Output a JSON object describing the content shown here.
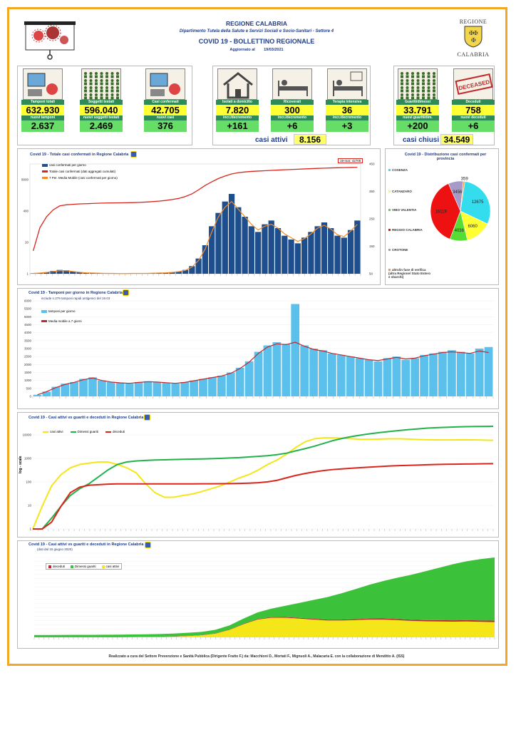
{
  "header": {
    "region": "REGIONE CALABRIA",
    "department": "Dipartimento Tutela della Salute e Servizi Sociali e Socio-Sanitari - Settore 4",
    "title": "COVID 19 - BOLLETTINO REGIONALE",
    "updated_label": "Aggiornato al",
    "updated_date": "19/03/2021",
    "logo_top": "REGIONE",
    "logo_bottom": "CALABRIA"
  },
  "kpis": [
    {
      "label": "Tamponi totali",
      "value": "632.930",
      "sub_label": "nuovi tamponi",
      "sub_value": "2.637",
      "icon": "lab-computer-icon"
    },
    {
      "label": "Soggetti testati",
      "value": "596.040",
      "sub_label": "nuovi soggetti testati",
      "sub_value": "2.469",
      "icon": "people-grid-icon"
    },
    {
      "label": "Casi confermati",
      "value": "42.705",
      "sub_label": "nuovi casi",
      "sub_value": "376",
      "icon": "virus-people-icon"
    },
    {
      "label": "Isolati a domicilio",
      "value": "7.820",
      "sub_label": "incr./decremento",
      "sub_value": "+161",
      "icon": "house-icon"
    },
    {
      "label": "Ricoverati",
      "value": "300",
      "sub_label": "incr./decremento",
      "sub_value": "+6",
      "icon": "hospital-bed-icon"
    },
    {
      "label": "Terapia intensiva",
      "value": "36",
      "sub_label": "incr./decremento",
      "sub_value": "+3",
      "icon": "intensive-care-icon"
    },
    {
      "label": "Guariti/dimessi",
      "value": "33.791",
      "sub_label": "nuovi guariti/dim.",
      "sub_value": "+200",
      "icon": "recovered-people-icon"
    },
    {
      "label": "Deceduti",
      "value": "758",
      "sub_label": "nuovi deceduti",
      "sub_value": "+6",
      "icon": "deceased-stamp-icon"
    }
  ],
  "active": {
    "label": "casi attivi",
    "value": "8.156"
  },
  "closed": {
    "label": "casi chiusi",
    "value": "34.549"
  },
  "deceased_stamp_text": "DECEASED",
  "chart_data": [
    {
      "type": "bar",
      "title": "Covid 19 - Totale casi confermati in Regione Calabria",
      "annotation": "19-mar; 42705",
      "legend": [
        "casi confermati per giorno",
        "Totale casi confermati (dati aggregati cumulati)",
        "7 Per. Media Mobile (casi confermati per giorno)"
      ],
      "y_left_ticks": [
        "8000",
        "400",
        "20",
        "1"
      ],
      "y_right_ticks": [
        "450",
        "350",
        "250",
        "150",
        "50"
      ],
      "scale": "log",
      "series": [
        {
          "name": "casi confermati per giorno",
          "color": "#1f4e8c",
          "values": [
            2,
            4,
            8,
            15,
            20,
            18,
            12,
            8,
            5,
            4,
            3,
            2,
            2,
            1,
            1,
            2,
            3,
            2,
            3,
            4,
            5,
            8,
            12,
            20,
            40,
            80,
            150,
            250,
            320,
            380,
            420,
            350,
            300,
            250,
            220,
            260,
            280,
            240,
            200,
            180,
            160,
            190,
            220,
            250,
            270,
            240,
            200,
            190,
            230,
            280
          ]
        },
        {
          "name": "Totale casi confermati (dati aggregati cumulati)",
          "color": "#d9261c",
          "values": [
            10,
            100,
            300,
            600,
            900,
            1000,
            1050,
            1100,
            1120,
            1150,
            1180,
            1200,
            1210,
            1220,
            1230,
            1250,
            1280,
            1320,
            1380,
            1450,
            1550,
            1700,
            1900,
            2300,
            3000,
            4500,
            7000,
            10000,
            14000,
            18000,
            22000,
            25000,
            27000,
            28500,
            29500,
            30500,
            31500,
            32500,
            33500,
            34500,
            35500,
            36500,
            37500,
            38500,
            39500,
            40300,
            41000,
            41600,
            42200,
            42705
          ]
        },
        {
          "name": "7 Per. Media Mobile (casi confermati per giorno)",
          "color": "#f28c28",
          "values": [
            2,
            4,
            7,
            12,
            16,
            16,
            12,
            8,
            5,
            4,
            3,
            2,
            2,
            1,
            1,
            2,
            2,
            2,
            3,
            4,
            5,
            7,
            11,
            18,
            35,
            70,
            130,
            220,
            300,
            350,
            380,
            340,
            300,
            260,
            230,
            250,
            260,
            240,
            210,
            190,
            170,
            185,
            210,
            240,
            255,
            235,
            205,
            195,
            225,
            260
          ]
        }
      ]
    },
    {
      "type": "pie",
      "title": "Covid 19 - Distribuzione casi confermati per provincia",
      "categories": [
        "COSENZA",
        "CATANZARO",
        "VIBO VALENTIA",
        "REGGIO CALABRIA",
        "CROTONE",
        "altro/in fase di verifica (altra Regione/ Stato Estero e sbarchi)"
      ],
      "values": [
        12675,
        6060,
        4036,
        16119,
        3456,
        359
      ],
      "colors": [
        "#33ddee",
        "#ffff33",
        "#55dd33",
        "#ee1111",
        "#a69ac8",
        "#ff9933"
      ]
    },
    {
      "type": "bar",
      "title": "Covid 19 - Tamponi per giorno in Regione Calabria",
      "subtitle": "include n.279 tamponi rapidi antigenici del 19.03",
      "legend": [
        "tamponi per giorno",
        "Media mobile a 7 giorni"
      ],
      "y_ticks": [
        "6000",
        "5500",
        "5000",
        "4500",
        "4000",
        "3500",
        "3000",
        "2500",
        "2000",
        "1500",
        "1000",
        "500",
        "0"
      ],
      "ylim": [
        0,
        6000
      ],
      "series": [
        {
          "name": "tamponi per giorno",
          "color": "#5bc0eb",
          "values": [
            100,
            300,
            600,
            800,
            900,
            1100,
            1200,
            1000,
            900,
            850,
            800,
            900,
            950,
            900,
            850,
            800,
            900,
            1000,
            1100,
            1200,
            1300,
            1500,
            1800,
            2200,
            2800,
            3200,
            3400,
            3300,
            5800,
            3200,
            3000,
            2900,
            2700,
            2600,
            2500,
            2400,
            2300,
            2200,
            2400,
            2500,
            2300,
            2400,
            2600,
            2700,
            2800,
            2900,
            2800,
            2700,
            3000,
            3100
          ]
        },
        {
          "name": "Media mobile a 7 giorni",
          "color": "#c0282d",
          "values": [
            100,
            300,
            550,
            750,
            880,
            1050,
            1150,
            1000,
            900,
            850,
            820,
            880,
            920,
            900,
            860,
            820,
            880,
            980,
            1080,
            1180,
            1280,
            1450,
            1750,
            2150,
            2700,
            3100,
            3300,
            3250,
            3400,
            3150,
            2950,
            2850,
            2700,
            2600,
            2500,
            2400,
            2300,
            2250,
            2350,
            2450,
            2350,
            2400,
            2550,
            2650,
            2750,
            2800,
            2750,
            2700,
            2850,
            2750
          ]
        }
      ]
    },
    {
      "type": "line",
      "title": "Covid 19 - Casi attivi vs guariti e deceduti in Regione Calabria",
      "ylabel": "log - scale",
      "scale": "log",
      "y_ticks": [
        "10000",
        "1000",
        "100",
        "10",
        "1"
      ],
      "legend": [
        "casi attivi",
        "Dimessi guariti",
        "deceduti"
      ],
      "series": [
        {
          "name": "casi attivi",
          "color": "#f5e61a",
          "values": [
            1,
            10,
            80,
            250,
            500,
            700,
            800,
            900,
            900,
            700,
            500,
            300,
            100,
            40,
            25,
            25,
            30,
            35,
            45,
            60,
            80,
            120,
            180,
            250,
            400,
            700,
            1100,
            2000,
            4000,
            7000,
            9500,
            10500,
            10500,
            10000,
            9500,
            9000,
            9000,
            9200,
            9500,
            9500,
            9200,
            8800,
            8600,
            8500,
            8400,
            8500,
            8600,
            8500,
            8300,
            8156
          ]
        },
        {
          "name": "Dimessi guariti",
          "color": "#22b24c",
          "values": [
            1,
            1,
            3,
            10,
            30,
            60,
            100,
            200,
            400,
            700,
            900,
            1000,
            1050,
            1100,
            1120,
            1150,
            1180,
            1200,
            1230,
            1260,
            1300,
            1350,
            1400,
            1500,
            1600,
            1700,
            1900,
            2200,
            2800,
            3500,
            4500,
            6000,
            8000,
            10000,
            12000,
            14000,
            16000,
            18000,
            20000,
            22000,
            24000,
            26000,
            28000,
            29500,
            30500,
            31500,
            32500,
            33000,
            33500,
            33791
          ]
        },
        {
          "name": "deceduti",
          "color": "#d9261c",
          "values": [
            1,
            1,
            2,
            10,
            40,
            70,
            85,
            90,
            95,
            97,
            97,
            97,
            97,
            97,
            97,
            97,
            97,
            97,
            98,
            98,
            99,
            100,
            102,
            105,
            110,
            120,
            140,
            180,
            230,
            280,
            330,
            380,
            420,
            450,
            480,
            510,
            540,
            570,
            600,
            620,
            640,
            660,
            680,
            700,
            710,
            720,
            730,
            740,
            750,
            758
          ]
        }
      ]
    },
    {
      "type": "area",
      "title": "Covid 19 - Casi attivi vs guariti e deceduti in Regione Calabria",
      "subtitle": "(dati dal 15 giugno 2020)",
      "legend": [
        "deceduti",
        "Dimessi guariti",
        "casi attivi"
      ],
      "series": [
        {
          "name": "deceduti",
          "color": "#c0282d",
          "values": [
            97,
            97,
            97,
            97,
            97,
            98,
            98,
            99,
            100,
            102,
            105,
            110,
            120,
            140,
            180,
            230,
            280,
            330,
            380,
            420,
            450,
            480,
            510,
            540,
            570,
            600,
            620,
            640,
            660,
            680,
            700,
            720,
            740,
            758
          ]
        },
        {
          "name": "Dimessi guariti",
          "color": "#3cc13b",
          "values": [
            1100,
            1120,
            1150,
            1180,
            1200,
            1230,
            1260,
            1300,
            1350,
            1400,
            1500,
            1600,
            1700,
            1900,
            2200,
            2800,
            3500,
            4500,
            6000,
            8000,
            10000,
            12000,
            14000,
            16000,
            18000,
            20000,
            22000,
            24000,
            26000,
            28000,
            30000,
            31500,
            32800,
            33791
          ]
        },
        {
          "name": "casi attivi",
          "color": "#f5e61a",
          "values": [
            20,
            25,
            30,
            35,
            45,
            60,
            80,
            120,
            180,
            250,
            400,
            700,
            1100,
            2000,
            4000,
            7000,
            9500,
            10500,
            10500,
            10000,
            9500,
            9000,
            9000,
            9200,
            9500,
            9500,
            9200,
            8800,
            8600,
            8500,
            8400,
            8500,
            8300,
            8156
          ]
        }
      ]
    }
  ],
  "footer": "Realizzato a cura del Settore Prevenzione e Sanità Pubblica (Dirigente Fratto F.) da:  Macchioni D., Mortati F., Mignuoli A., Malacaria E. con la collaborazione di Menditto A. (ISS)"
}
